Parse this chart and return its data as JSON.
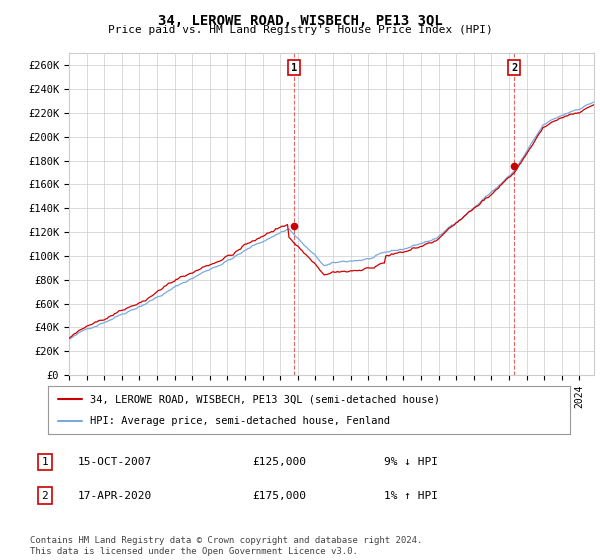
{
  "title": "34, LEROWE ROAD, WISBECH, PE13 3QL",
  "subtitle": "Price paid vs. HM Land Registry's House Price Index (HPI)",
  "ylabel_ticks": [
    "£0",
    "£20K",
    "£40K",
    "£60K",
    "£80K",
    "£100K",
    "£120K",
    "£140K",
    "£160K",
    "£180K",
    "£200K",
    "£220K",
    "£240K",
    "£260K"
  ],
  "ytick_vals": [
    0,
    20000,
    40000,
    60000,
    80000,
    100000,
    120000,
    140000,
    160000,
    180000,
    200000,
    220000,
    240000,
    260000
  ],
  "ylim": [
    0,
    270000
  ],
  "xlim_start": 1995.0,
  "xlim_end": 2024.83,
  "hpi_color": "#7aaadd",
  "price_color": "#cc0000",
  "vline_color": "#cc0000",
  "marker1_x": 2007.79,
  "marker1_y": 125000,
  "marker2_x": 2020.29,
  "marker2_y": 175000,
  "legend_label1": "34, LEROWE ROAD, WISBECH, PE13 3QL (semi-detached house)",
  "legend_label2": "HPI: Average price, semi-detached house, Fenland",
  "annotation1_num": "1",
  "annotation1_date": "15-OCT-2007",
  "annotation1_price": "£125,000",
  "annotation1_hpi": "9% ↓ HPI",
  "annotation2_num": "2",
  "annotation2_date": "17-APR-2020",
  "annotation2_price": "£175,000",
  "annotation2_hpi": "1% ↑ HPI",
  "footer": "Contains HM Land Registry data © Crown copyright and database right 2024.\nThis data is licensed under the Open Government Licence v3.0.",
  "grid_color": "#cccccc",
  "background_color": "#ffffff"
}
